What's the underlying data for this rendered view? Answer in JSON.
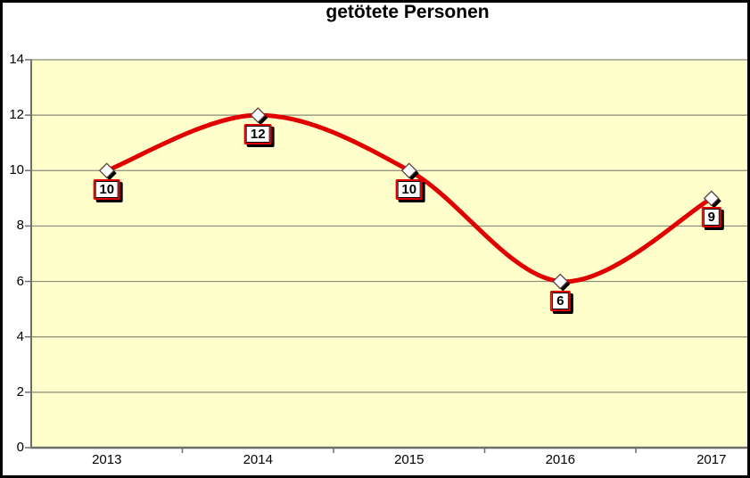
{
  "title": "getötete Personen",
  "chart_data": {
    "type": "line",
    "smooth": true,
    "title": "getötete Personen",
    "categories": [
      "2013",
      "2014",
      "2015",
      "2016",
      "2017"
    ],
    "series": [
      {
        "name": "getötete Personen",
        "values": [
          10,
          12,
          10,
          6,
          9
        ]
      }
    ],
    "data_labels": [
      "10",
      "12",
      "10",
      "6",
      "9"
    ],
    "yticks": [
      "0",
      "2",
      "4",
      "6",
      "8",
      "10",
      "12",
      "14"
    ],
    "ylim": [
      0,
      14
    ],
    "xlabel": "",
    "ylabel": "",
    "grid": true,
    "legend_position": "none",
    "marker": "white-diamond-with-shadow",
    "colors": {
      "line": "#E00000",
      "plot_background": "#FFFFCC",
      "outer_background": "#FFFFFF",
      "gridline": "#8A8A7A",
      "axis": "#6E6E6E",
      "label_box_border": "#E00000",
      "label_box_fill": "#FFFFFF",
      "label_shadow": "#000000",
      "frame": "#000000",
      "text": "#000000"
    }
  }
}
